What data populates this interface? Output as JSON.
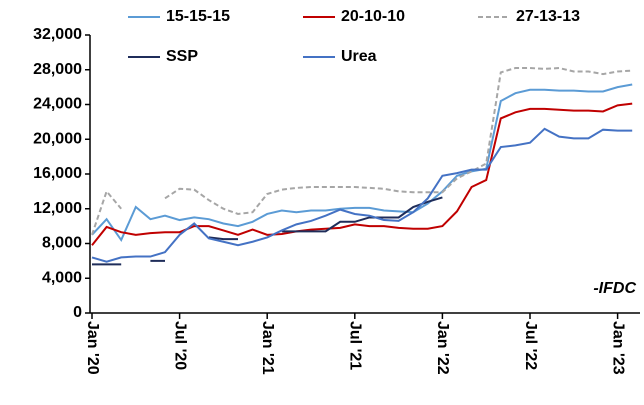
{
  "chart_data": {
    "type": "line",
    "categories": [
      "Jan '20",
      null,
      null,
      null,
      null,
      null,
      "Jul '20",
      null,
      null,
      null,
      null,
      null,
      "Jan '21",
      null,
      null,
      null,
      null,
      null,
      "Jul '21",
      null,
      null,
      null,
      null,
      null,
      "Jan '22",
      null,
      null,
      null,
      null,
      null,
      "Jul '22",
      null,
      null,
      null,
      null,
      null,
      "Jan '23",
      null
    ],
    "series": [
      {
        "name": "15-15-15",
        "color": "#5b9bd5",
        "dashed": false,
        "values": [
          9000,
          10800,
          8400,
          12200,
          10800,
          11200,
          10700,
          11000,
          10800,
          10300,
          10000,
          10500,
          11400,
          11800,
          11600,
          11800,
          11800,
          12000,
          12100,
          12100,
          11800,
          11700,
          11600,
          12600,
          14000,
          15800,
          16300,
          16600,
          24400,
          25300,
          25700,
          25700,
          25600,
          25600,
          25500,
          25500,
          26000,
          26300
        ]
      },
      {
        "name": "20-10-10",
        "color": "#c00000",
        "dashed": false,
        "values": [
          7800,
          9900,
          9300,
          9000,
          9200,
          9300,
          9300,
          10000,
          10000,
          9500,
          9000,
          9600,
          9000,
          9100,
          9400,
          9600,
          9700,
          9800,
          10200,
          10000,
          10000,
          9800,
          9700,
          9700,
          10000,
          11700,
          14500,
          15300,
          22400,
          23100,
          23500,
          23500,
          23400,
          23300,
          23300,
          23200,
          23900,
          24100
        ]
      },
      {
        "name": "27-13-13",
        "color": "#a6a6a6",
        "dashed": true,
        "values": [
          9000,
          14000,
          12000,
          null,
          null,
          13200,
          14300,
          14200,
          13000,
          12000,
          11400,
          11600,
          13700,
          14200,
          14400,
          14500,
          14500,
          14500,
          14500,
          14400,
          14300,
          14000,
          13900,
          13900,
          13900,
          15500,
          16300,
          17200,
          27700,
          28200,
          28200,
          28100,
          28200,
          27800,
          27800,
          27500,
          27800,
          27900
        ]
      },
      {
        "name": "SSP",
        "color": "#1f2d5a",
        "dashed": false,
        "values": [
          5600,
          5600,
          5600,
          null,
          6000,
          6000,
          null,
          null,
          8700,
          8500,
          8500,
          null,
          null,
          9400,
          9400,
          9400,
          9400,
          10500,
          10500,
          11000,
          11000,
          11000,
          12200,
          12800,
          13300,
          null,
          null,
          null,
          null,
          null,
          null,
          null,
          null,
          null,
          null,
          null,
          null,
          null
        ]
      },
      {
        "name": "Urea",
        "color": "#4472c4",
        "dashed": false,
        "values": [
          6400,
          5900,
          6400,
          6500,
          6500,
          7000,
          9000,
          10300,
          8600,
          8200,
          7800,
          8200,
          8700,
          9500,
          10200,
          10600,
          11200,
          11900,
          11400,
          11200,
          10700,
          10600,
          11600,
          13200,
          15800,
          16100,
          16500,
          16500,
          19100,
          19300,
          19600,
          21200,
          20300,
          20100,
          20100,
          21100,
          21000,
          21000
        ]
      }
    ],
    "ylim": [
      0,
      32000
    ],
    "yticks": [
      {
        "value": 0,
        "label": "0"
      },
      {
        "value": 4000,
        "label": "4,000"
      },
      {
        "value": 8000,
        "label": "8,000"
      },
      {
        "value": 12000,
        "label": "12,000"
      },
      {
        "value": 16000,
        "label": "16,000"
      },
      {
        "value": 20000,
        "label": "20,000"
      },
      {
        "value": 24000,
        "label": "24,000"
      },
      {
        "value": 28000,
        "label": "28,000"
      },
      {
        "value": 32000,
        "label": "32,000"
      }
    ],
    "annotation": "-IFDC",
    "grid": false
  }
}
